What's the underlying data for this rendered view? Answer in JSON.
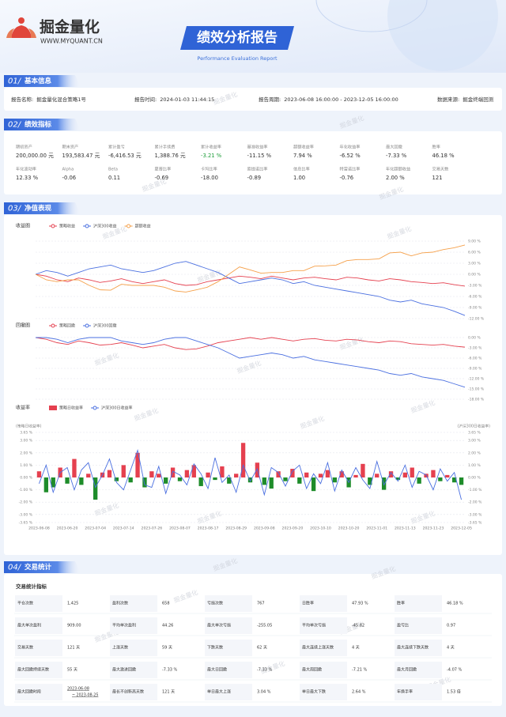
{
  "header": {
    "logo_name": "掘金量化",
    "logo_url": "WWW.MYQUANT.CN",
    "title": "绩效分析报告",
    "subtitle": "Performance Evaluation Report"
  },
  "watermark": "掘金量化",
  "sections": [
    {
      "number": "01/",
      "title": "基本信息"
    },
    {
      "number": "02/",
      "title": "绩效指标"
    },
    {
      "number": "03/",
      "title": "净值表现"
    },
    {
      "number": "04/",
      "title": "交易统计"
    }
  ],
  "basic_info": [
    {
      "label": "报告名称:",
      "value": "掘金量化混合策略1号"
    },
    {
      "label": "报告时间:",
      "value": "2024-01-03 11:44:15"
    },
    {
      "label": "报告周期:",
      "value": "2023-06-08 16:00:00 - 2023-12-05 16:00:00"
    },
    {
      "label": "数据来源:",
      "value": "掘金终端回测"
    }
  ],
  "metrics": [
    [
      {
        "label": "期初资产",
        "value": "200,000.00 元"
      },
      {
        "label": "期末资产",
        "value": "193,583.47 元"
      },
      {
        "label": "累计盈亏",
        "value": "-6,416.53 元"
      },
      {
        "label": "累计手续费",
        "value": "1,388.76 元"
      },
      {
        "label": "累计收益率",
        "value": "-3.21 %",
        "color": "#1e9e3a"
      },
      {
        "label": "基准收益率",
        "value": "-11.15 %"
      },
      {
        "label": "超额收益率",
        "value": "7.94 %"
      },
      {
        "label": "年化收益率",
        "value": "-6.52 %"
      },
      {
        "label": "最大回撤",
        "value": "-7.33 %"
      },
      {
        "label": "胜率",
        "value": "46.18 %"
      }
    ],
    [
      {
        "label": "年化波动率",
        "value": "12.33 %"
      },
      {
        "label": "Alpha",
        "value": "-0.06"
      },
      {
        "label": "Beta",
        "value": "0.11"
      },
      {
        "label": "夏普比率",
        "value": "-0.69"
      },
      {
        "label": "卡玛比率",
        "value": "-18.00"
      },
      {
        "label": "索提诺比率",
        "value": "-0.89"
      },
      {
        "label": "信息比率",
        "value": "1.00"
      },
      {
        "label": "特雷诺比率",
        "value": "-0.76"
      },
      {
        "label": "年化超额收益",
        "value": "2.00 %"
      },
      {
        "label": "交易天数",
        "value": "121"
      }
    ]
  ],
  "chart_data": [
    {
      "type": "line",
      "title": "收益图",
      "y_axis_position": "right",
      "grid": true,
      "ylim": [
        -12,
        9
      ],
      "yticks": [
        {
          "value": 9,
          "label": "9.00 %"
        },
        {
          "value": 6,
          "label": "6.00 %"
        },
        {
          "value": 3,
          "label": "3.00 %"
        },
        {
          "value": 0,
          "label": "0.00 %"
        },
        {
          "value": -3,
          "label": "-3.00 %"
        },
        {
          "value": -6,
          "label": "-6.00 %"
        },
        {
          "value": -9,
          "label": "-9.00 %"
        },
        {
          "value": -12,
          "label": "-12.00 %"
        }
      ],
      "series": [
        {
          "name": "策略收益",
          "color": "#e5404f",
          "values": [
            0,
            -0.5,
            -1.5,
            -2.0,
            -1.0,
            -1.5,
            -2.2,
            -1.8,
            -1.2,
            -2.0,
            -2.5,
            -2.0,
            -1.5,
            -2.5,
            -3.0,
            -2.8,
            -2.0,
            -1.5,
            -1.0,
            -0.5,
            -0.8,
            -1.2,
            -0.5,
            -1.0,
            -1.5,
            -1.0,
            -0.8,
            -1.2,
            -1.5,
            -0.8,
            -1.0,
            -1.5,
            -1.8,
            -1.2,
            -1.5,
            -2.0,
            -2.2,
            -2.5,
            -2.3,
            -2.8,
            -3.21
          ]
        },
        {
          "name": "沪深300收益",
          "color": "#4a6fe0",
          "values": [
            0,
            1.0,
            0.5,
            -0.5,
            0.5,
            1.5,
            2.0,
            2.5,
            1.5,
            1.0,
            0.5,
            1.0,
            2.0,
            3.0,
            3.5,
            2.5,
            1.5,
            0.5,
            -1.0,
            -2.5,
            -2.0,
            -1.5,
            -1.0,
            -1.5,
            -2.5,
            -2.0,
            -3.0,
            -3.5,
            -4.0,
            -4.5,
            -5.0,
            -5.5,
            -6.0,
            -7.0,
            -7.5,
            -7.0,
            -8.0,
            -8.5,
            -9.0,
            -10.0,
            -11.15
          ]
        },
        {
          "name": "超额收益",
          "color": "#f5a04a",
          "values": [
            0,
            -1.5,
            -2.0,
            -1.5,
            -1.5,
            -3.0,
            -4.2,
            -4.3,
            -2.7,
            -3.0,
            -3.0,
            -3.0,
            -3.5,
            -4.5,
            -4.8,
            -4.2,
            -3.5,
            -2.0,
            0,
            2.0,
            1.2,
            0.3,
            0.5,
            0.5,
            1.0,
            1.0,
            2.2,
            2.3,
            2.5,
            3.7,
            4.0,
            4.0,
            4.2,
            5.8,
            6.0,
            5.0,
            5.8,
            6.0,
            6.7,
            7.2,
            7.94
          ]
        }
      ]
    },
    {
      "type": "line",
      "title": "回撤图",
      "y_axis_position": "right",
      "grid": true,
      "ylim": [
        -18,
        0
      ],
      "yticks": [
        {
          "value": 0,
          "label": "0.00 %"
        },
        {
          "value": -3,
          "label": "-3.00 %"
        },
        {
          "value": -6,
          "label": "-6.00 %"
        },
        {
          "value": -9,
          "label": "-9.00 %"
        },
        {
          "value": -12,
          "label": "-12.00 %"
        },
        {
          "value": -15,
          "label": "-15.00 %"
        },
        {
          "value": -18,
          "label": "-18.00 %"
        }
      ],
      "series": [
        {
          "name": "策略回撤",
          "color": "#e5404f",
          "values": [
            0,
            -0.5,
            -1.5,
            -2,
            -1,
            -1.5,
            -2.2,
            -2,
            -1.5,
            -2.2,
            -3,
            -2.5,
            -2,
            -3,
            -3.5,
            -3.3,
            -2.5,
            -1.5,
            -1.0,
            -0.5,
            0,
            -0.5,
            0,
            -0.5,
            -1,
            -0.5,
            -0.3,
            -0.8,
            -1,
            -0.5,
            -0.7,
            -1.2,
            -1.5,
            -1.0,
            -1.2,
            -1.8,
            -2.0,
            -2.2,
            -2.0,
            -2.5,
            -2.8
          ]
        },
        {
          "name": "沪深300回撤",
          "color": "#4a6fe0",
          "values": [
            0,
            0,
            -0.5,
            -1.5,
            -0.5,
            0,
            0,
            0,
            -1,
            -1.5,
            -2,
            -1.5,
            -0.5,
            0,
            0,
            -1,
            -2,
            -3,
            -4.5,
            -6,
            -5.5,
            -5,
            -4.5,
            -5,
            -6,
            -5.5,
            -6.5,
            -7,
            -7.5,
            -8,
            -8.5,
            -9,
            -9.5,
            -10.5,
            -11,
            -10.5,
            -11.5,
            -12,
            -12.5,
            -13.5,
            -14.5
          ]
        }
      ]
    },
    {
      "type": "combo",
      "title": "收益率",
      "grid": true,
      "y_label": "(策略日收益率)",
      "y2_label": "(沪深300日收益率)",
      "ylim": [
        -3.65,
        3.65
      ],
      "y2lim": [
        -3.65,
        3.65
      ],
      "yticks": [
        {
          "value": 3.65,
          "label": "3.65 %"
        },
        {
          "value": 3,
          "label": "3.00 %"
        },
        {
          "value": 2,
          "label": "2.00 %"
        },
        {
          "value": 1,
          "label": "1.00 %"
        },
        {
          "value": 0,
          "label": "0.00 %"
        },
        {
          "value": -1,
          "label": "-1.00 %"
        },
        {
          "value": -2,
          "label": "-2.00 %"
        },
        {
          "value": -3,
          "label": "-3.00 %"
        },
        {
          "value": -3.65,
          "label": "-3.65 %"
        }
      ],
      "y2ticks": [
        {
          "value": 3.65,
          "label": "3.65 %"
        },
        {
          "value": 3,
          "label": "3.00 %"
        },
        {
          "value": 2,
          "label": "2.00 %"
        },
        {
          "value": 1,
          "label": "1.00 %"
        },
        {
          "value": 0,
          "label": "0.00 %"
        },
        {
          "value": -1,
          "label": "-1.00 %"
        },
        {
          "value": -2,
          "label": "-2.00 %"
        },
        {
          "value": -3,
          "label": "-3.00 %"
        },
        {
          "value": -3.65,
          "label": "-3.65 %"
        }
      ],
      "categories": [
        "2023-06-08",
        null,
        null,
        null,
        "2023-06-20",
        null,
        null,
        null,
        "2023-07-04",
        null,
        null,
        null,
        "2023-07-14",
        null,
        null,
        null,
        "2023-07-26",
        null,
        null,
        null,
        "2023-08-07",
        null,
        null,
        null,
        "2023-08-17",
        null,
        null,
        null,
        "2023-08-29",
        null,
        null,
        null,
        "2023-09-08",
        null,
        null,
        null,
        "2023-09-20",
        null,
        null,
        null,
        "2023-10-10",
        null,
        null,
        null,
        "2023-10-20",
        null,
        null,
        null,
        "2023-11-01",
        null,
        null,
        null,
        "2023-11-13",
        null,
        null,
        null,
        "2023-11-23",
        null,
        null,
        null,
        "2023-12-05"
      ],
      "series": [
        {
          "name": "策略日收益率",
          "type": "bar",
          "color": "#e5404f",
          "negative_color": "#1e8c2a",
          "values": [
            0.5,
            -1.2,
            -0.8,
            0.8,
            -0.5,
            1.5,
            -0.6,
            0.3,
            -1.8,
            0.4,
            0.6,
            -0.3,
            1.0,
            -0.4,
            2.0,
            -0.8,
            0.5,
            0.3,
            -0.5,
            0.8,
            -0.3,
            0.6,
            1.0,
            -0.7,
            0.4,
            -0.2,
            0.9,
            -0.5,
            0.3,
            2.8,
            -0.4,
            1.2,
            -0.6,
            -0.9,
            0.5,
            -0.3,
            0.7,
            -0.5,
            0.4,
            -1.1,
            0.3,
            0.6,
            -0.4,
            0.5,
            -0.8,
            0.2,
            1.1,
            -0.6,
            0.3,
            -1.0,
            0.5,
            -0.2,
            0.4,
            0.8,
            -0.5,
            0.3,
            0.6,
            -0.3,
            0.2,
            -0.4,
            -0.6
          ]
        },
        {
          "name": "沪深300日收益率",
          "type": "line",
          "axis": "y2",
          "color": "#4a6fe0",
          "values": [
            -0.5,
            1.0,
            -1.2,
            0.4,
            0.8,
            -1.0,
            0.6,
            1.2,
            -0.8,
            0.2,
            1.5,
            -0.4,
            -1.0,
            0.6,
            2.2,
            -0.6,
            -0.8,
            0.9,
            -1.3,
            0.5,
            0.2,
            -0.6,
            1.1,
            0.3,
            -0.9,
            1.6,
            -0.4,
            0.2,
            -1.2,
            1.0,
            -0.3,
            0.7,
            -1.4,
            0.8,
            0.4,
            -0.7,
            0.5,
            1.0,
            -0.9,
            0.3,
            -0.5,
            1.2,
            -1.1,
            0.6,
            -0.4,
            0.8,
            -0.2,
            -0.9,
            1.3,
            -0.6,
            0.4,
            -0.3,
            1.0,
            -0.8,
            0.5,
            0.2,
            -1.0,
            0.7,
            -0.3,
            0.4,
            -1.8
          ]
        }
      ]
    }
  ],
  "trade_stats": {
    "title": "交易统计指标",
    "rows": [
      [
        {
          "label": "平仓次数",
          "value": "1,425"
        },
        {
          "label": "盈利次数",
          "value": "658"
        },
        {
          "label": "亏损次数",
          "value": "767"
        },
        {
          "label": "日胜率",
          "value": "47.93 %"
        },
        {
          "label": "胜率",
          "value": "46.18 %"
        }
      ],
      [
        {
          "label": "最大单次盈利",
          "value": "909.00"
        },
        {
          "label": "平均单次盈利",
          "value": "44.26"
        },
        {
          "label": "最大单次亏损",
          "value": "-255.05"
        },
        {
          "label": "平均单次亏损",
          "value": "-45.82"
        },
        {
          "label": "盈亏比",
          "value": "0.97"
        }
      ],
      [
        {
          "label": "交易天数",
          "value": "121 天"
        },
        {
          "label": "上涨天数",
          "value": "59 天"
        },
        {
          "label": "下跌天数",
          "value": "62 天"
        },
        {
          "label": "最大连续上涨天数",
          "value": "4 天"
        },
        {
          "label": "最大连续下跌天数",
          "value": "4 天"
        }
      ],
      [
        {
          "label": "最大回撤持续天数",
          "value": "55 天"
        },
        {
          "label": "最大激进回撤",
          "value": "-7.33 %"
        },
        {
          "label": "最大日回撤",
          "value": "-7.33 %"
        },
        {
          "label": "最大周回撤",
          "value": "-7.21 %"
        },
        {
          "label": "最大月回撤",
          "value": "-4.07 %"
        }
      ],
      [
        {
          "label": "最大回撤时段",
          "value": [
            "2023-06-08",
            "~ 2023-08-25"
          ]
        },
        {
          "label": "最长不创新高天数",
          "value": "121 天"
        },
        {
          "label": "单日最大上涨",
          "value": "3.04 %"
        },
        {
          "label": "单日最大下跌",
          "value": "2.64 %"
        },
        {
          "label": "年换手率",
          "value": "1.53 倍"
        }
      ]
    ]
  }
}
